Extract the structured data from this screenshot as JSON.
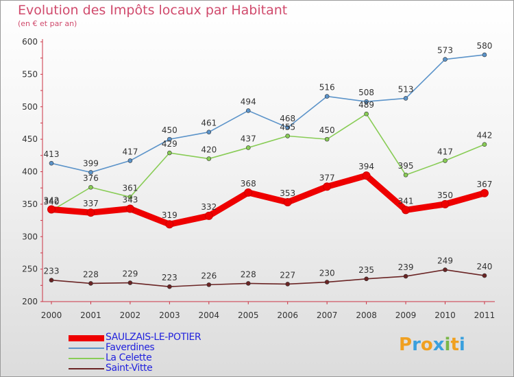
{
  "header": {
    "title": "Evolution des Impôts locaux par Habitant",
    "subtitle": "(en € et par an)"
  },
  "logo": {
    "letters": [
      "P",
      "r",
      "o",
      "x",
      "i",
      "t",
      "i"
    ],
    "colors": [
      "#f0a020",
      "#3aa0dd",
      "#f0a020",
      "#3aa0dd",
      "#7ab648",
      "#f0a020",
      "#3aa0dd"
    ]
  },
  "chart_data": {
    "type": "line",
    "x": [
      "2000",
      "2001",
      "2002",
      "2003",
      "2004",
      "2005",
      "2006",
      "2007",
      "2008",
      "2009",
      "2010",
      "2011"
    ],
    "ylim": [
      200,
      600
    ],
    "yticks": [
      200,
      250,
      300,
      350,
      400,
      450,
      500,
      550,
      600
    ],
    "grid": false,
    "legend_position": "bottom-left",
    "series": [
      {
        "name": "SAULZAIS-LE-POTIER",
        "color": "#ee0000",
        "emphasis": true,
        "values": [
          342,
          337,
          343,
          319,
          332,
          368,
          353,
          377,
          394,
          341,
          350,
          367
        ]
      },
      {
        "name": "Faverdines",
        "color": "#5b93c9",
        "emphasis": false,
        "values": [
          413,
          399,
          417,
          450,
          461,
          494,
          468,
          516,
          508,
          513,
          573,
          580
        ]
      },
      {
        "name": "La Celette",
        "color": "#88cc55",
        "emphasis": false,
        "values": [
          340,
          376,
          361,
          429,
          420,
          437,
          455,
          450,
          489,
          395,
          417,
          442
        ]
      },
      {
        "name": "Saint-Vitte",
        "color": "#6a2424",
        "emphasis": false,
        "values": [
          233,
          228,
          229,
          223,
          226,
          228,
          227,
          230,
          235,
          239,
          249,
          240
        ]
      }
    ]
  }
}
